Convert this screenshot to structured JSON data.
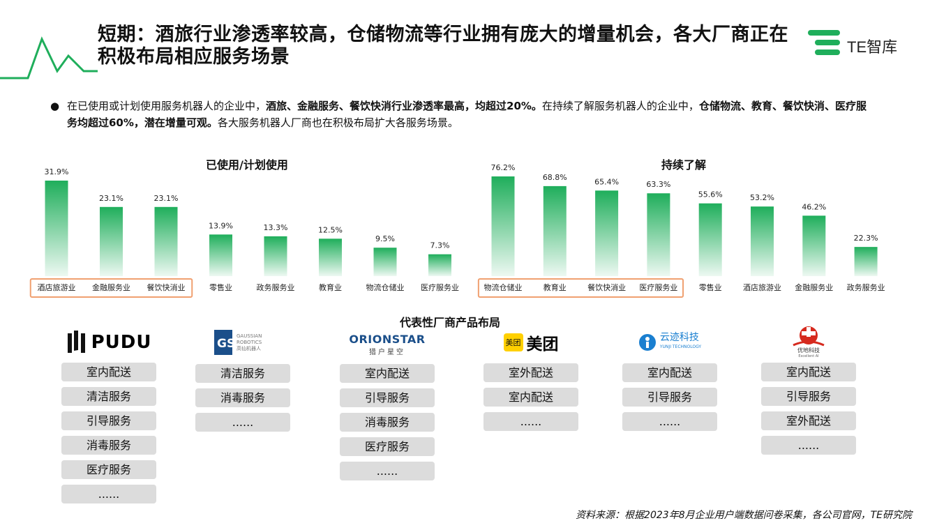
{
  "title": "短期：酒旅行业渗透率较高，仓储物流等行业拥有庞大的增量机会，各大厂商正在积极布局相应服务场景",
  "logo": {
    "text": "TE智库",
    "icon": "te-logo-icon",
    "accent": "#1fae5b"
  },
  "bullet": {
    "icon": "bullet-icon",
    "parts": [
      {
        "text": "在已使用或计划使用服务机器人的企业中，",
        "bold": false
      },
      {
        "text": "酒旅、金融服务、餐饮快消行业渗透率最高，均超过20%。",
        "bold": true
      },
      {
        "text": "在持续了解服务机器人的企业中，",
        "bold": false
      },
      {
        "text": "仓储物流、教育、餐饮快消、医疗服务均超过60%，潜在增量可观。",
        "bold": true
      },
      {
        "text": "各大服务机器人厂商也在积极布局扩大各服务场景。",
        "bold": false
      }
    ]
  },
  "chart_data": [
    {
      "type": "bar",
      "title": "已使用/计划使用",
      "categories": [
        "酒店旅游业",
        "金融服务业",
        "餐饮快消业",
        "零售业",
        "政务服务业",
        "教育业",
        "物流仓储业",
        "医疗服务业"
      ],
      "values": [
        31.9,
        23.1,
        23.1,
        13.9,
        13.3,
        12.5,
        9.5,
        7.3
      ],
      "value_labels": [
        "31.9%",
        "23.1%",
        "23.1%",
        "13.9%",
        "13.3%",
        "12.5%",
        "9.5%",
        "7.3%"
      ],
      "highlighted_categories": [
        "酒店旅游业",
        "金融服务业",
        "餐饮快消业"
      ],
      "bar_color": "#1fae5b",
      "highlight_color": "#f0a070"
    },
    {
      "type": "bar",
      "title": "持续了解",
      "categories": [
        "物流仓储业",
        "教育业",
        "餐饮快消业",
        "医疗服务业",
        "零售业",
        "酒店旅游业",
        "金融服务业",
        "政务服务业"
      ],
      "values": [
        76.2,
        68.8,
        65.4,
        63.3,
        55.6,
        53.2,
        46.2,
        22.3
      ],
      "value_labels": [
        "76.2%",
        "68.8%",
        "65.4%",
        "63.3%",
        "55.6%",
        "53.2%",
        "46.2%",
        "22.3%"
      ],
      "highlighted_categories": [
        "物流仓储业",
        "教育业",
        "餐饮快消业",
        "医疗服务业"
      ],
      "bar_color": "#1fae5b",
      "highlight_color": "#f0a070"
    }
  ],
  "vendors_title": "代表性厂商产品布局",
  "vendors": [
    {
      "name": "PUDU",
      "icon": "pudu-logo-icon",
      "services": [
        "室内配送",
        "清洁服务",
        "引导服务",
        "消毒服务",
        "医疗服务",
        "......"
      ]
    },
    {
      "name": "GAUSSIAN ROBOTICS",
      "sub": "高仙机器人",
      "icon": "gaussian-logo-icon",
      "services": [
        "清洁服务",
        "消毒服务",
        "......"
      ]
    },
    {
      "name": "ORIONSTAR",
      "sub": "猎户星空",
      "icon": "orionstar-logo-icon",
      "services": [
        "室内配送",
        "引导服务",
        "消毒服务",
        "医疗服务",
        "......"
      ]
    },
    {
      "name": "美团",
      "badge": "美团",
      "icon": "meituan-logo-icon",
      "services": [
        "室外配送",
        "室内配送",
        "......"
      ]
    },
    {
      "name": "云迹科技",
      "sub": "YUNJI TECHNOLOGY",
      "icon": "yunji-logo-icon",
      "services": [
        "室内配送",
        "引导服务",
        "......"
      ]
    },
    {
      "name": "优地科技",
      "sub": "Excellent AI",
      "icon": "youdi-logo-icon",
      "services": [
        "室内配送",
        "引导服务",
        "室外配送",
        "......"
      ]
    }
  ],
  "source": "资料来源：根据2023年8月企业用户端数据问卷采集，各公司官网，TE研究院"
}
